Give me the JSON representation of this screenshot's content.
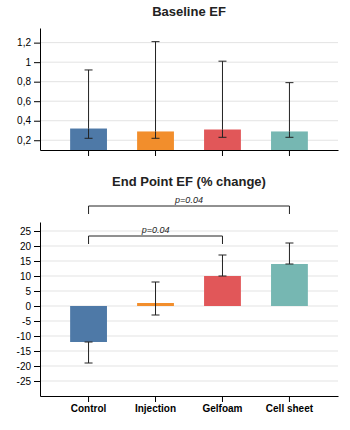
{
  "chart_data": [
    {
      "type": "bar",
      "title": "Baseline EF",
      "categories": [
        "Control",
        "Injection",
        "Gelfoam",
        "Cell sheet"
      ],
      "values": [
        0.32,
        0.29,
        0.31,
        0.29
      ],
      "error_up": [
        0.6,
        0.92,
        0.7,
        0.5
      ],
      "error_down": [
        0.1,
        0.07,
        0.08,
        0.06
      ],
      "ylim": [
        0.1,
        1.35
      ],
      "yticks": [
        {
          "value": 0.2,
          "label": "0,2"
        },
        {
          "value": 0.4,
          "label": "0,4"
        },
        {
          "value": 0.6,
          "label": "0,6"
        },
        {
          "value": 0.8,
          "label": "0,8"
        },
        1,
        {
          "value": 1.2,
          "label": "1,2"
        }
      ],
      "grid": true,
      "tick_labels": "y"
    },
    {
      "type": "bar",
      "title": "End Point EF (% change)",
      "categories": [
        "Control",
        "Injection",
        "Gelfoam",
        "Cell sheet"
      ],
      "values": [
        -12,
        1,
        10,
        14
      ],
      "error_up": [
        0,
        7,
        7,
        7
      ],
      "error_down": [
        7,
        4,
        0,
        0
      ],
      "ylim": [
        -30,
        28
      ],
      "yticks": [
        -25,
        -20,
        -15,
        -10,
        -5,
        0,
        5,
        10,
        15,
        20,
        25
      ],
      "grid": true,
      "annotations": [
        {
          "text": "p=0.04",
          "from": "Control",
          "to": "Gelfoam"
        },
        {
          "text": "p=0.04",
          "from": "Control",
          "to": "Cell sheet"
        }
      ]
    }
  ]
}
